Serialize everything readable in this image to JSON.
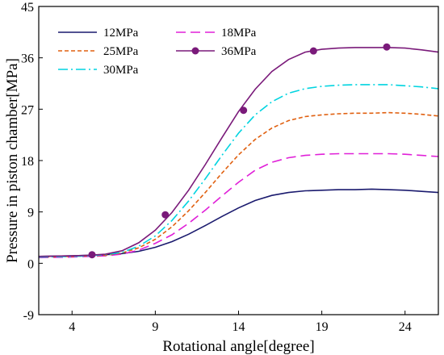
{
  "chart_data": {
    "type": "line",
    "title": "",
    "xlabel": "Rotational angle[degree]",
    "ylabel": "Pressure in piston chamber[MPa]",
    "xlim": [
      2,
      26
    ],
    "ylim": [
      -9,
      45
    ],
    "xticks": [
      4,
      9,
      14,
      19,
      24
    ],
    "yticks": [
      -9,
      0,
      9,
      18,
      27,
      36,
      45
    ],
    "grid": false,
    "legend_position": "top-left",
    "series": [
      {
        "name": "12MPa",
        "color": "#1a1a6e",
        "dash": "solid",
        "marker": "none",
        "x": [
          2,
          4,
          5,
          6,
          7,
          8,
          9,
          10,
          11,
          12,
          13,
          14,
          15,
          16,
          17,
          18,
          19,
          20,
          21,
          22,
          23,
          24,
          25,
          26
        ],
        "y": [
          1.2,
          1.3,
          1.4,
          1.5,
          1.7,
          2.1,
          2.8,
          3.8,
          5.1,
          6.6,
          8.2,
          9.7,
          11.0,
          11.9,
          12.4,
          12.7,
          12.8,
          12.9,
          12.9,
          13.0,
          12.9,
          12.8,
          12.6,
          12.4
        ]
      },
      {
        "name": "18MPa",
        "color": "#e020d8",
        "dash": "long-dash",
        "marker": "none",
        "x": [
          2,
          4,
          5,
          6,
          7,
          8,
          9,
          10,
          11,
          12,
          13,
          14,
          15,
          16,
          17,
          18,
          19,
          20,
          21,
          22,
          23,
          24,
          25,
          26
        ],
        "y": [
          1.0,
          1.1,
          1.2,
          1.3,
          1.6,
          2.3,
          3.5,
          5.0,
          7.0,
          9.3,
          11.8,
          14.2,
          16.3,
          17.7,
          18.5,
          18.9,
          19.1,
          19.2,
          19.2,
          19.2,
          19.2,
          19.1,
          18.9,
          18.7
        ]
      },
      {
        "name": "25MPa",
        "color": "#e06010",
        "dash": "short-dash",
        "marker": "none",
        "x": [
          2,
          4,
          5,
          6,
          7,
          8,
          9,
          10,
          11,
          12,
          13,
          14,
          15,
          16,
          17,
          18,
          19,
          20,
          21,
          22,
          23,
          24,
          25,
          26
        ],
        "y": [
          1.1,
          1.2,
          1.3,
          1.4,
          1.8,
          2.7,
          4.2,
          6.4,
          9.2,
          12.4,
          15.8,
          19.0,
          21.7,
          23.7,
          25.0,
          25.7,
          26.0,
          26.2,
          26.3,
          26.3,
          26.4,
          26.3,
          26.1,
          25.8
        ]
      },
      {
        "name": "30MPa",
        "color": "#00d4e0",
        "dash": "dash-dot",
        "marker": "none",
        "x": [
          2,
          4,
          5,
          6,
          7,
          8,
          9,
          10,
          11,
          12,
          13,
          14,
          15,
          16,
          17,
          18,
          19,
          20,
          21,
          22,
          23,
          24,
          25,
          26
        ],
        "y": [
          1.1,
          1.2,
          1.3,
          1.5,
          1.9,
          3.0,
          4.8,
          7.5,
          10.9,
          14.8,
          18.9,
          22.8,
          26.0,
          28.3,
          29.8,
          30.6,
          31.0,
          31.2,
          31.3,
          31.3,
          31.3,
          31.1,
          30.9,
          30.6
        ]
      },
      {
        "name": "36MPa",
        "color": "#7a1a7a",
        "dash": "solid",
        "marker": "circle",
        "x": [
          2,
          4,
          5,
          6,
          7,
          8,
          9,
          10,
          11,
          12,
          13,
          14,
          15,
          16,
          17,
          18,
          19,
          20,
          21,
          22,
          23,
          24,
          25,
          26
        ],
        "y": [
          1.2,
          1.3,
          1.4,
          1.6,
          2.2,
          3.6,
          5.8,
          8.9,
          12.8,
          17.3,
          22.0,
          26.6,
          30.5,
          33.6,
          35.7,
          37.0,
          37.5,
          37.7,
          37.8,
          37.8,
          37.8,
          37.7,
          37.4,
          37.0
        ],
        "marker_x": [
          5.2,
          9.6,
          14.3,
          18.5,
          22.9
        ],
        "marker_y": [
          1.5,
          8.5,
          26.8,
          37.2,
          37.9
        ]
      }
    ]
  }
}
